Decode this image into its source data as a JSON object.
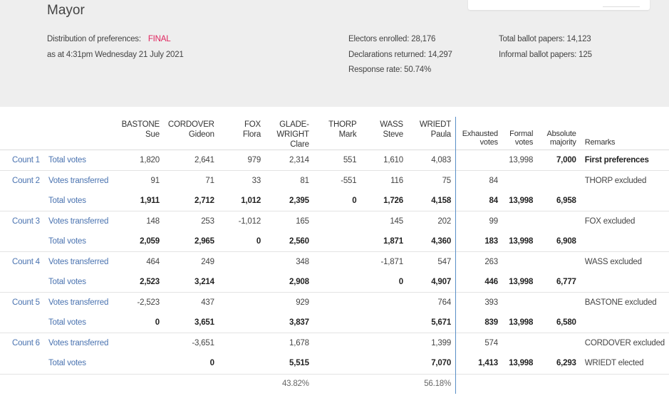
{
  "title": "Mayor",
  "meta": {
    "distribution_label": "Distribution of preferences:",
    "distribution_status": "FINAL",
    "as_at": "as at 4:31pm Wednesday 21 July 2021",
    "electors_enrolled": "Electors enrolled: 28,176",
    "declarations_returned": "Declarations returned: 14,297",
    "response_rate": "Response rate: 50.74%",
    "total_ballot_papers": "Total ballot papers: 14,123",
    "informal_ballot_papers": "Informal ballot papers: 125"
  },
  "headers": {
    "candidates": [
      {
        "surname": "BASTONE",
        "given": "Sue"
      },
      {
        "surname": "CORDOVER",
        "given": "Gideon"
      },
      {
        "surname": "FOX",
        "given": "Flora"
      },
      {
        "surname": "GLADE-",
        "surname2": "WRIGHT",
        "given": "Clare"
      },
      {
        "surname": "THORP",
        "given": "Mark"
      },
      {
        "surname": "WASS",
        "given": "Steve"
      },
      {
        "surname": "WRIEDT",
        "given": "Paula"
      }
    ],
    "exhausted": [
      "Exhausted",
      "votes"
    ],
    "formal": [
      "Formal",
      "votes"
    ],
    "absolute": [
      "Absolute",
      "majority"
    ],
    "remarks": "Remarks"
  },
  "rows": [
    {
      "count": "Count 1",
      "label": "Total votes",
      "cells": [
        "1,820",
        "2,641",
        "979",
        "2,314",
        "551",
        "1,610",
        "4,083"
      ],
      "exhausted": "",
      "formal": "13,998",
      "absolute": "7,000",
      "remarks": "First preferences"
    },
    {
      "count": "Count 2",
      "label": "Votes transferred",
      "cells": [
        "91",
        "71",
        "33",
        "81",
        "-551",
        "116",
        "75"
      ],
      "exhausted": "84",
      "formal": "",
      "absolute": "",
      "remarks": "THORP excluded"
    },
    {
      "count": "",
      "label": "Total votes",
      "cells": [
        "1,911",
        "2,712",
        "1,012",
        "2,395",
        "0",
        "1,726",
        "4,158"
      ],
      "exhausted": "84",
      "formal": "13,998",
      "absolute": "6,958",
      "remarks": ""
    },
    {
      "count": "Count 3",
      "label": "Votes transferred",
      "cells": [
        "148",
        "253",
        "-1,012",
        "165",
        "",
        "145",
        "202"
      ],
      "exhausted": "99",
      "formal": "",
      "absolute": "",
      "remarks": "FOX excluded"
    },
    {
      "count": "",
      "label": "Total votes",
      "cells": [
        "2,059",
        "2,965",
        "0",
        "2,560",
        "",
        "1,871",
        "4,360"
      ],
      "exhausted": "183",
      "formal": "13,998",
      "absolute": "6,908",
      "remarks": ""
    },
    {
      "count": "Count 4",
      "label": "Votes transferred",
      "cells": [
        "464",
        "249",
        "",
        "348",
        "",
        "-1,871",
        "547"
      ],
      "exhausted": "263",
      "formal": "",
      "absolute": "",
      "remarks": "WASS excluded"
    },
    {
      "count": "",
      "label": "Total votes",
      "cells": [
        "2,523",
        "3,214",
        "",
        "2,908",
        "",
        "0",
        "4,907"
      ],
      "exhausted": "446",
      "formal": "13,998",
      "absolute": "6,777",
      "remarks": ""
    },
    {
      "count": "Count 5",
      "label": "Votes transferred",
      "cells": [
        "-2,523",
        "437",
        "",
        "929",
        "",
        "",
        "764"
      ],
      "exhausted": "393",
      "formal": "",
      "absolute": "",
      "remarks": "BASTONE excluded"
    },
    {
      "count": "",
      "label": "Total votes",
      "cells": [
        "0",
        "3,651",
        "",
        "3,837",
        "",
        "",
        "5,671"
      ],
      "exhausted": "839",
      "formal": "13,998",
      "absolute": "6,580",
      "remarks": ""
    },
    {
      "count": "Count 6",
      "label": "Votes transferred",
      "cells": [
        "",
        "-3,651",
        "",
        "1,678",
        "",
        "",
        "1,399"
      ],
      "exhausted": "574",
      "formal": "",
      "absolute": "",
      "remarks": "CORDOVER excluded"
    },
    {
      "count": "",
      "label": "Total votes",
      "cells": [
        "",
        "0",
        "",
        "5,515",
        "",
        "",
        "7,070"
      ],
      "exhausted": "1,413",
      "formal": "13,998",
      "absolute": "6,293",
      "remarks": "WRIEDT elected"
    }
  ],
  "percentages": [
    "",
    "",
    "",
    "43.82%",
    "",
    "",
    "56.18%"
  ]
}
